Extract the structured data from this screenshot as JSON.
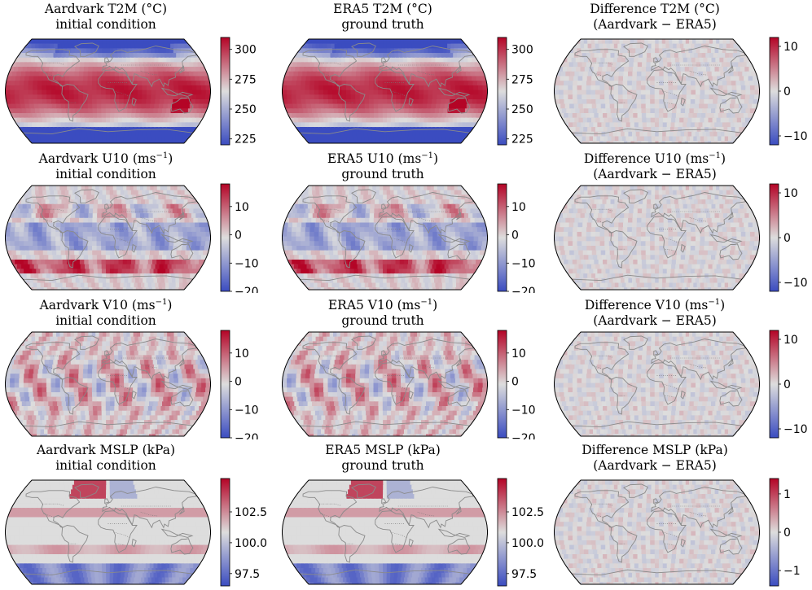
{
  "colors": {
    "cold": "#3b4cc0",
    "neutral": "#dddddd",
    "warm": "#b40426",
    "land": "#8a8a8a",
    "border": "#000000"
  },
  "panels": [
    {
      "id": "aardvark-t2m",
      "title_line1": "Aardvark T2M (°C)",
      "title_line2": "initial condition",
      "field": "t2m-abs",
      "colorbar": {
        "min": 220,
        "max": 310,
        "ticks": [
          {
            "value": 225,
            "label": "225"
          },
          {
            "value": 250,
            "label": "250"
          },
          {
            "value": 275,
            "label": "275"
          },
          {
            "value": 300,
            "label": "300"
          }
        ]
      }
    },
    {
      "id": "era5-t2m",
      "title_line1": "ERA5 T2M (°C)",
      "title_line2": "ground truth",
      "field": "t2m-abs",
      "colorbar": {
        "min": 220,
        "max": 310,
        "ticks": [
          {
            "value": 225,
            "label": "225"
          },
          {
            "value": 250,
            "label": "250"
          },
          {
            "value": 275,
            "label": "275"
          },
          {
            "value": 300,
            "label": "300"
          }
        ]
      }
    },
    {
      "id": "diff-t2m",
      "title_line1": "Difference T2M (°C)",
      "title_line2": "(Aardvark − ERA5)",
      "field": "diff",
      "colorbar": {
        "min": -12,
        "max": 12,
        "ticks": [
          {
            "value": -10,
            "label": "−10"
          },
          {
            "value": 0,
            "label": "0"
          },
          {
            "value": 10,
            "label": "10"
          }
        ]
      }
    },
    {
      "id": "aardvark-u10",
      "title_line1": "Aardvark U10 (ms",
      "title_sup": "−1",
      "title_tail": ")",
      "title_line2": "initial condition",
      "field": "wind-u",
      "colorbar": {
        "min": -20,
        "max": 18,
        "ticks": [
          {
            "value": -20,
            "label": "−20"
          },
          {
            "value": -10,
            "label": "−10"
          },
          {
            "value": 0,
            "label": "0"
          },
          {
            "value": 10,
            "label": "10"
          }
        ]
      }
    },
    {
      "id": "era5-u10",
      "title_line1": "ERA5 U10 (ms",
      "title_sup": "−1",
      "title_tail": ")",
      "title_line2": "ground truth",
      "field": "wind-u",
      "colorbar": {
        "min": -20,
        "max": 18,
        "ticks": [
          {
            "value": -20,
            "label": "−20"
          },
          {
            "value": -10,
            "label": "−10"
          },
          {
            "value": 0,
            "label": "0"
          },
          {
            "value": 10,
            "label": "10"
          }
        ]
      }
    },
    {
      "id": "diff-u10",
      "title_line1": "Difference U10 (ms",
      "title_sup": "−1",
      "title_tail": ")",
      "title_line2": "(Aardvark − ERA5)",
      "field": "diff",
      "colorbar": {
        "min": -12,
        "max": 12,
        "ticks": [
          {
            "value": -10,
            "label": "−10"
          },
          {
            "value": 0,
            "label": "0"
          },
          {
            "value": 10,
            "label": "10"
          }
        ]
      }
    },
    {
      "id": "aardvark-v10",
      "title_line1": "Aardvark V10 (ms",
      "title_sup": "−1",
      "title_tail": ")",
      "title_line2": "initial condition",
      "field": "wind-v",
      "colorbar": {
        "min": -20,
        "max": 18,
        "ticks": [
          {
            "value": -20,
            "label": "−20"
          },
          {
            "value": -10,
            "label": "−10"
          },
          {
            "value": 0,
            "label": "0"
          },
          {
            "value": 10,
            "label": "10"
          }
        ]
      }
    },
    {
      "id": "era5-v10",
      "title_line1": "ERA5 V10 (ms",
      "title_sup": "−1",
      "title_tail": ")",
      "title_line2": "ground truth",
      "field": "wind-v",
      "colorbar": {
        "min": -20,
        "max": 18,
        "ticks": [
          {
            "value": -20,
            "label": "−20"
          },
          {
            "value": -10,
            "label": "−10"
          },
          {
            "value": 0,
            "label": "0"
          },
          {
            "value": 10,
            "label": "10"
          }
        ]
      }
    },
    {
      "id": "diff-v10",
      "title_line1": "Difference V10 (ms",
      "title_sup": "−1",
      "title_tail": ")",
      "title_line2": "(Aardvark − ERA5)",
      "field": "diff",
      "colorbar": {
        "min": -12,
        "max": 12,
        "ticks": [
          {
            "value": -10,
            "label": "−10"
          },
          {
            "value": 0,
            "label": "0"
          },
          {
            "value": 10,
            "label": "10"
          }
        ]
      }
    },
    {
      "id": "aardvark-mslp",
      "title_line1": "Aardvark MSLP (kPa)",
      "title_line2": "initial condition",
      "field": "mslp",
      "colorbar": {
        "min": 96.5,
        "max": 105.2,
        "ticks": [
          {
            "value": 97.5,
            "label": "97.5"
          },
          {
            "value": 100.0,
            "label": "100.0"
          },
          {
            "value": 102.5,
            "label": "102.5"
          }
        ]
      }
    },
    {
      "id": "era5-mslp",
      "title_line1": "ERA5 MSLP (kPa)",
      "title_line2": "ground truth",
      "field": "mslp",
      "colorbar": {
        "min": 96.5,
        "max": 105.2,
        "ticks": [
          {
            "value": 97.5,
            "label": "97.5"
          },
          {
            "value": 100.0,
            "label": "100.0"
          },
          {
            "value": 102.5,
            "label": "102.5"
          }
        ]
      }
    },
    {
      "id": "diff-mslp",
      "title_line1": "Difference MSLP (kPa)",
      "title_line2": "(Aardvark − ERA5)",
      "field": "diff",
      "colorbar": {
        "min": -1.4,
        "max": 1.4,
        "ticks": [
          {
            "value": -1,
            "label": "−1"
          },
          {
            "value": 0,
            "label": "0"
          },
          {
            "value": 1,
            "label": "1"
          }
        ]
      }
    }
  ]
}
